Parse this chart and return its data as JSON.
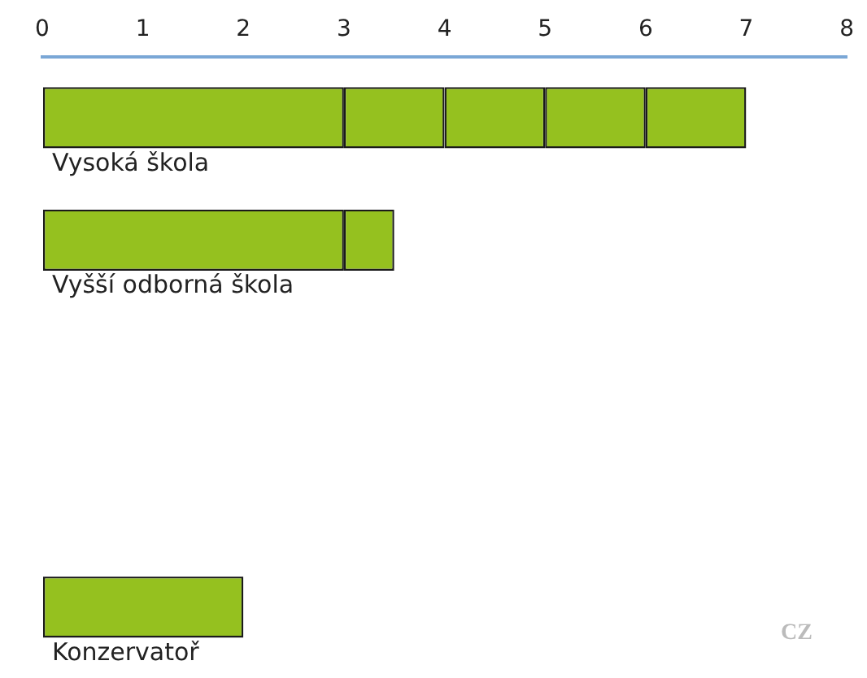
{
  "chart_data": {
    "type": "bar",
    "orientation": "horizontal",
    "stacked": true,
    "categories": [
      "Vysoká škola",
      "Vyšší odborná škola",
      null,
      null,
      "Konzervatoř"
    ],
    "series": [
      {
        "color": "#95c11f",
        "values": [
          3,
          3,
          null,
          null,
          2
        ]
      },
      {
        "color": "#95c11f",
        "values": [
          1,
          0.5,
          null,
          null,
          null
        ]
      },
      {
        "color": "#95c11f",
        "values": [
          1,
          null,
          null,
          null,
          null
        ]
      },
      {
        "color": "#95c11f",
        "values": [
          1,
          null,
          null,
          null,
          null
        ]
      },
      {
        "color": "#95c11f",
        "values": [
          1,
          null,
          null,
          null,
          null
        ]
      }
    ],
    "xlim": [
      0,
      8
    ],
    "xticks": [
      0,
      1,
      2,
      3,
      4,
      5,
      6,
      7,
      8
    ],
    "grid": false,
    "legend": false,
    "annotations": [
      "CZ"
    ]
  }
}
